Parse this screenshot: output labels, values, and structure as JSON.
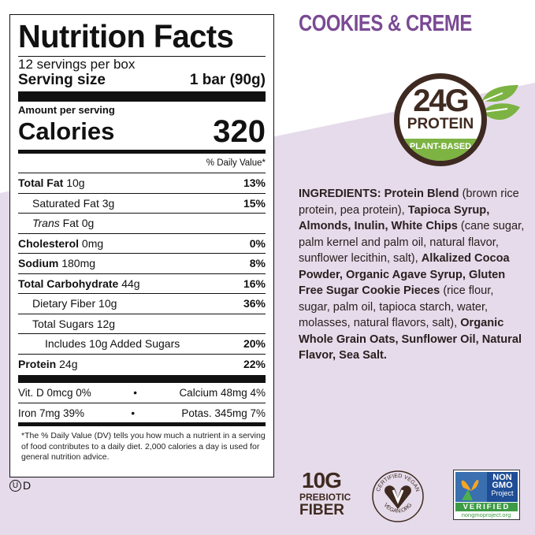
{
  "colors": {
    "lavender": "#e5dbea",
    "flavor": "#7a4a93",
    "brown": "#3f2a21",
    "green": "#7cb342"
  },
  "label": {
    "title": "Nutrition Facts",
    "servings": "12 servings per box",
    "serving_size_label": "Serving size",
    "serving_size_value": "1 bar (90g)",
    "amount_per_serving": "Amount per serving",
    "calories_label": "Calories",
    "calories_value": "320",
    "daily_value_header": "% Daily Value*",
    "rows": [
      {
        "name": "Total Fat",
        "amount": "10g",
        "dv": "13%"
      },
      {
        "name": "Saturated Fat",
        "amount": "3g",
        "dv": "15%"
      },
      {
        "name": "Trans",
        "name2": "Fat",
        "amount": "0g",
        "dv": ""
      },
      {
        "name": "Cholesterol",
        "amount": "0mg",
        "dv": "0%"
      },
      {
        "name": "Sodium",
        "amount": "180mg",
        "dv": "8%"
      },
      {
        "name": "Total Carbohydrate",
        "amount": "44g",
        "dv": "16%"
      },
      {
        "name": "Dietary Fiber",
        "amount": "10g",
        "dv": "36%"
      },
      {
        "name": "Total Sugars",
        "amount": "12g",
        "dv": ""
      },
      {
        "name": "Includes 10g Added Sugars",
        "amount": "",
        "dv": "20%"
      },
      {
        "name": "Protein",
        "amount": "24g",
        "dv": "22%"
      }
    ],
    "vitamins": [
      {
        "left": "Vit. D 0mcg 0%",
        "right": "Calcium 48mg 4%"
      },
      {
        "left": "Iron 7mg 39%",
        "right": "Potas. 345mg 7%"
      }
    ],
    "bullet": "•",
    "footnote": "*The % Daily Value (DV) tells you how much a nutrient in a serving of food contributes to a daily diet. 2,000 calories a day is used for general nutrition advice."
  },
  "kosher": {
    "symbol": "U",
    "letter": "D"
  },
  "flavor": "COOKIES & CREME",
  "protein_badge": {
    "amount": "24G",
    "label": "PROTEIN",
    "sub": "PLANT-BASED"
  },
  "ingredients": {
    "parts": [
      {
        "t": "INGREDIENTS: Protein Blend",
        "b": true
      },
      {
        "t": " (brown rice protein, pea protein), ",
        "b": false
      },
      {
        "t": "Tapioca Syrup, Almonds, Inulin, White Chips",
        "b": true
      },
      {
        "t": " (cane sugar, palm kernel and palm oil, natural flavor, sunflower lecithin, salt), ",
        "b": false
      },
      {
        "t": "Alkalized Cocoa Powder, Organic Agave Syrup, Gluten Free Sugar Cookie Pieces",
        "b": true
      },
      {
        "t": " (rice flour, sugar, palm oil, tapioca starch, water, molasses, natural flavors, salt), ",
        "b": false
      },
      {
        "t": "Organic Whole Grain Oats, Sunflower Oil, Natural Flavor, Sea Salt.",
        "b": true
      }
    ]
  },
  "fiber_badge": {
    "amount": "10G",
    "line1": "PREBIOTIC",
    "line2": "FIBER"
  },
  "vegan_badge": {
    "top": "CERTIFIED VEGAN",
    "bottom": "VEGAN.ORG"
  },
  "nongmo_badge": {
    "line1": "NON",
    "line2": "GMO",
    "line3": "Project",
    "verified": "VERIFIED",
    "url": "nongmoproject.org"
  }
}
